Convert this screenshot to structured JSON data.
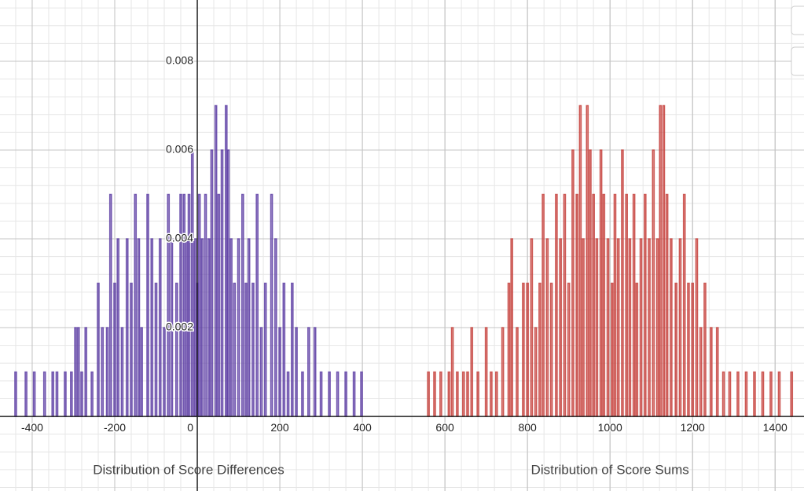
{
  "chart_data": {
    "type": "bar",
    "xlim": [
      -478,
      1470
    ],
    "ylim": [
      -0.00168,
      0.00938
    ],
    "xticks": [
      -400,
      -200,
      0,
      200,
      400,
      600,
      800,
      1000,
      1200,
      1400
    ],
    "yticks": [
      0.002,
      0.004,
      0.006,
      0.008
    ],
    "grid": true,
    "minor_divisions": 5,
    "bar_width": 4,
    "series": [
      {
        "name": "Distribution of Score Differences",
        "color": "#6042a6",
        "x": [
          -440,
          -415,
          -395,
          -370,
          -350,
          -340,
          -320,
          -305,
          -295,
          -288,
          -280,
          -270,
          -255,
          -240,
          -230,
          -218,
          -210,
          -200,
          -192,
          -182,
          -170,
          -160,
          -150,
          -142,
          -135,
          -120,
          -110,
          -100,
          -90,
          -80,
          -70,
          -62,
          -50,
          -40,
          -32,
          -25,
          -20,
          -12,
          -5,
          0,
          5,
          12,
          20,
          28,
          35,
          45,
          52,
          60,
          70,
          75,
          82,
          90,
          100,
          110,
          118,
          125,
          135,
          145,
          155,
          165,
          180,
          190,
          200,
          210,
          220,
          230,
          240,
          255,
          270,
          285,
          300,
          320,
          340,
          360,
          380,
          398
        ],
        "values": [
          0.001,
          0.001,
          0.001,
          0.001,
          0.001,
          0.001,
          0.001,
          0.001,
          0.002,
          0.002,
          0.001,
          0.002,
          0.001,
          0.003,
          0.002,
          0.002,
          0.005,
          0.003,
          0.004,
          0.002,
          0.004,
          0.003,
          0.005,
          0.004,
          0.002,
          0.005,
          0.004,
          0.003,
          0.004,
          0.002,
          0.005,
          0.004,
          0.003,
          0.005,
          0.005,
          0.004,
          0.005,
          0.006,
          0.004,
          0.003,
          0.005,
          0.004,
          0.005,
          0.004,
          0.006,
          0.007,
          0.005,
          0.006,
          0.007,
          0.006,
          0.004,
          0.003,
          0.004,
          0.005,
          0.003,
          0.004,
          0.003,
          0.005,
          0.002,
          0.003,
          0.005,
          0.004,
          0.002,
          0.003,
          0.001,
          0.003,
          0.002,
          0.001,
          0.002,
          0.002,
          0.001,
          0.001,
          0.001,
          0.001,
          0.001,
          0.001
        ]
      },
      {
        "name": "Distribution of Score Sums",
        "color": "#c74440",
        "x": [
          560,
          575,
          590,
          610,
          618,
          630,
          645,
          655,
          665,
          680,
          700,
          712,
          725,
          740,
          755,
          762,
          775,
          790,
          800,
          810,
          820,
          830,
          838,
          848,
          858,
          870,
          880,
          890,
          900,
          910,
          920,
          928,
          935,
          945,
          952,
          960,
          968,
          978,
          985,
          995,
          1005,
          1012,
          1020,
          1030,
          1040,
          1048,
          1058,
          1065,
          1075,
          1085,
          1095,
          1105,
          1115,
          1122,
          1130,
          1138,
          1148,
          1160,
          1170,
          1180,
          1190,
          1200,
          1210,
          1220,
          1230,
          1245,
          1260,
          1275,
          1290,
          1310,
          1330,
          1350,
          1370,
          1390,
          1410,
          1440
        ],
        "values": [
          0.001,
          0.001,
          0.001,
          0.001,
          0.002,
          0.001,
          0.001,
          0.001,
          0.002,
          0.001,
          0.002,
          0.001,
          0.001,
          0.002,
          0.003,
          0.004,
          0.002,
          0.003,
          0.003,
          0.004,
          0.002,
          0.003,
          0.005,
          0.004,
          0.003,
          0.005,
          0.004,
          0.005,
          0.003,
          0.006,
          0.005,
          0.007,
          0.004,
          0.007,
          0.006,
          0.005,
          0.004,
          0.006,
          0.005,
          0.004,
          0.003,
          0.005,
          0.004,
          0.006,
          0.005,
          0.004,
          0.005,
          0.003,
          0.004,
          0.005,
          0.004,
          0.006,
          0.004,
          0.007,
          0.007,
          0.005,
          0.004,
          0.003,
          0.004,
          0.005,
          0.003,
          0.003,
          0.004,
          0.002,
          0.003,
          0.002,
          0.002,
          0.001,
          0.001,
          0.001,
          0.001,
          0.001,
          0.001,
          0.001,
          0.001,
          0.001
        ]
      }
    ]
  }
}
